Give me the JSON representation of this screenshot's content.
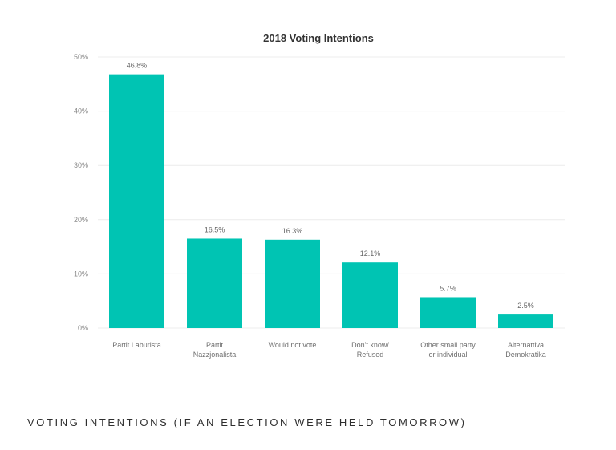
{
  "chart_data": {
    "type": "bar",
    "title": "2018 Voting Intentions",
    "categories": [
      [
        "Partit Laburista"
      ],
      [
        "Partit",
        "Nazzjonalista"
      ],
      [
        "Would not vote"
      ],
      [
        "Don't know/",
        "Refused"
      ],
      [
        "Other small party",
        "or individual"
      ],
      [
        "Alternattiva",
        "Demokratika"
      ]
    ],
    "values": [
      46.8,
      16.5,
      16.3,
      12.1,
      5.7,
      2.5
    ],
    "data_labels": [
      "46.8%",
      "16.5%",
      "16.3%",
      "12.1%",
      "5.7%",
      "2.5%"
    ],
    "yticks": [
      "0%",
      "10%",
      "20%",
      "30%",
      "40%",
      "50%"
    ],
    "ylim": [
      0,
      50
    ],
    "grid": true,
    "bar_color": "#00c4b3",
    "grid_color": "#ececec"
  },
  "caption": "VOTING INTENTIONS (IF AN ELECTION WERE HELD TOMORROW)"
}
